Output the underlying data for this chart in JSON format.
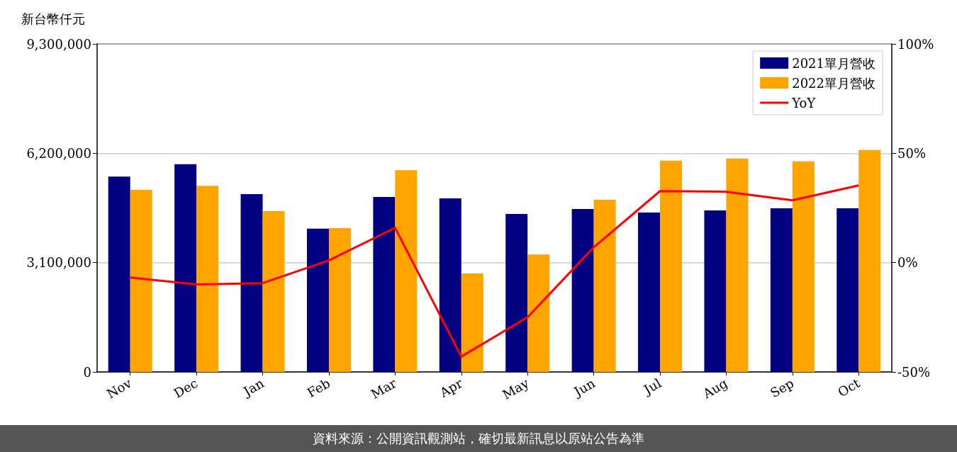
{
  "chart_data": {
    "type": "bar",
    "ylabel": "新台幣仟元",
    "categories": [
      "Nov",
      "Dec",
      "Jan",
      "Feb",
      "Mar",
      "Apr",
      "May",
      "Jun",
      "Jul",
      "Aug",
      "Sep",
      "Oct"
    ],
    "series": [
      {
        "name": "2021單月營收",
        "color": "#000080",
        "values": [
          5540000,
          5890000,
          5040000,
          4060000,
          4960000,
          4920000,
          4480000,
          4620000,
          4520000,
          4580000,
          4640000,
          4640000
        ]
      },
      {
        "name": "2022單月營收",
        "color": "#ffa500",
        "values": [
          5160000,
          5280000,
          4560000,
          4080000,
          5720000,
          2790000,
          3330000,
          4880000,
          5990000,
          6050000,
          5970000,
          6290000
        ]
      },
      {
        "name": "YoY",
        "type": "line",
        "axis": "y2",
        "color": "#ff0000",
        "marker": "none",
        "values": [
          -6.8,
          -10,
          -9.4,
          1,
          15.9,
          -43,
          -25,
          7,
          32.7,
          32.4,
          28.5,
          35.3
        ]
      }
    ],
    "ylim": [
      0,
      9300000
    ],
    "yticks": [
      {
        "value": 0,
        "label": "0"
      },
      {
        "value": 3100000,
        "label": "3,100,000"
      },
      {
        "value": 6200000,
        "label": "6,200,000"
      },
      {
        "value": 9300000,
        "label": "9,300,000"
      }
    ],
    "y2lim": [
      -50,
      100
    ],
    "y2ticks": [
      {
        "value": -50,
        "label": "-50%"
      },
      {
        "value": 0,
        "label": "0%"
      },
      {
        "value": 50,
        "label": "50%"
      },
      {
        "value": 100,
        "label": "100%"
      }
    ],
    "grid": "y",
    "legend": "top right",
    "annotations": [
      "資料來源：公開資訊觀測站，確切最新訊息以原站公告為準"
    ]
  }
}
